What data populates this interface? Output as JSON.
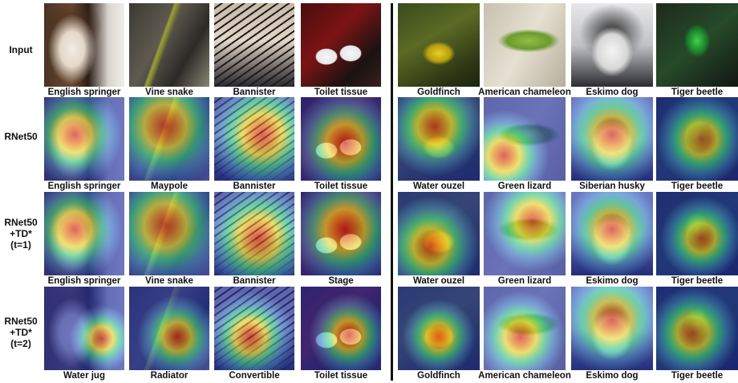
{
  "row_labels": [
    [
      "Input"
    ],
    [
      "RNet50"
    ],
    [
      "RNet50",
      "+TD*",
      "(t=1)"
    ],
    [
      "RNet50",
      "+TD*",
      "(t=2)"
    ]
  ],
  "left_panel": [
    [
      "English springer",
      "Vine snake",
      "Bannister",
      "Toilet tissue"
    ],
    [
      "English springer",
      "Maypole",
      "Bannister",
      "Toilet tissue"
    ],
    [
      "English springer",
      "Vine snake",
      "Bannister",
      "Stage"
    ],
    [
      "Water jug",
      "Radiator",
      "Convertible",
      "Toilet tissue"
    ]
  ],
  "right_panel": [
    [
      "Goldfinch",
      "American chameleon",
      "Eskimo dog",
      "Tiger beetle"
    ],
    [
      "Water ouzel",
      "Green lizard",
      "Siberian husky",
      "Tiger beetle"
    ],
    [
      "Water ouzel",
      "Green lizard",
      "Eskimo dog",
      "Tiger beetle"
    ],
    [
      "Goldfinch",
      "American chameleon",
      "Eskimo dog",
      "Tiger beetle"
    ]
  ],
  "colors": {
    "heat_hot": "#d71a1a",
    "heat_warm": "#f4e43a",
    "heat_mid": "#3ad6a0",
    "heat_cold": "#1f2fa8",
    "divider": "#111111"
  }
}
